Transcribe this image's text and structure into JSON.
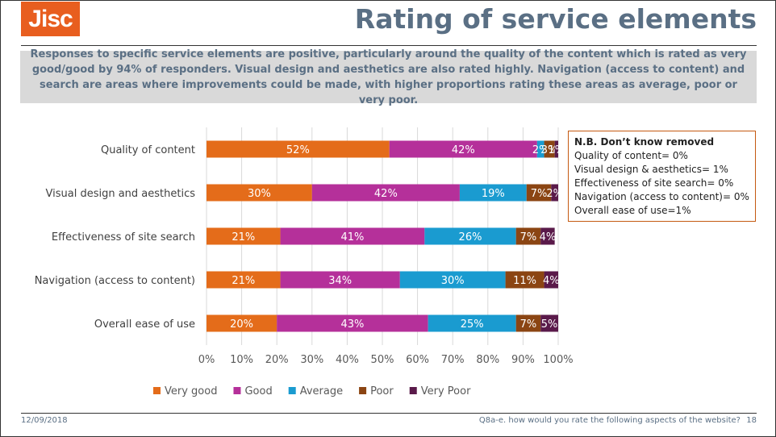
{
  "header": {
    "logo_text": "Jisc",
    "title": "Rating of service elements"
  },
  "summary": "Responses to specific service elements are positive, particularly around the quality of the content which is rated as very good/good by 94% of responders.  Visual design and aesthetics are also rated highly.  Navigation (access to content) and search are areas where improvements could be made, with higher proportions rating these areas as average,  poor or very poor.",
  "note": {
    "heading": "N.B. Don’t know removed",
    "lines": [
      "Quality of content= 0%",
      "Visual design & aesthetics= 1%",
      "Effectiveness of site search= 0%",
      "Navigation (access to content)= 0%",
      "Overall ease of use=1%"
    ]
  },
  "footer": {
    "date": "12/09/2018",
    "question": "Q8a-e. how would you rate the following aspects of the website?",
    "page_number": "18"
  },
  "colors": {
    "Very good": "#e46c1a",
    "Good": "#b5309a",
    "Average": "#1a9bd0",
    "Poor": "#8b4513",
    "Very Poor": "#5a1a4a"
  },
  "chart_data": {
    "type": "bar",
    "orientation": "horizontal",
    "stacked": true,
    "title": "",
    "xlabel": "",
    "ylabel": "",
    "xlim": [
      0,
      100
    ],
    "x_ticks": [
      "0%",
      "10%",
      "20%",
      "30%",
      "40%",
      "50%",
      "60%",
      "70%",
      "80%",
      "90%",
      "100%"
    ],
    "grid": true,
    "legend_position": "bottom-left",
    "categories": [
      "Quality of content",
      "Visual design and aesthetics",
      "Effectiveness of site search",
      "Navigation (access to content)",
      "Overall ease of use"
    ],
    "series": [
      {
        "name": "Very good",
        "values": [
          52,
          30,
          21,
          21,
          20
        ],
        "labels": [
          "52%",
          "30%",
          "21%",
          "21%",
          "20%"
        ]
      },
      {
        "name": "Good",
        "values": [
          42,
          42,
          41,
          34,
          43
        ],
        "labels": [
          "42%",
          "42%",
          "41%",
          "34%",
          "43%"
        ]
      },
      {
        "name": "Average",
        "values": [
          2,
          19,
          26,
          30,
          25
        ],
        "labels": [
          "2%",
          "19%",
          "26%",
          "30%",
          "25%"
        ]
      },
      {
        "name": "Poor",
        "values": [
          3,
          7,
          7,
          11,
          7
        ],
        "labels": [
          "3%",
          "7%",
          "7%",
          "11%",
          "7%"
        ]
      },
      {
        "name": "Very Poor",
        "values": [
          1,
          2,
          4,
          4,
          5
        ],
        "labels": [
          "1%",
          "2%",
          "4%",
          "4%",
          "5%"
        ]
      }
    ]
  }
}
